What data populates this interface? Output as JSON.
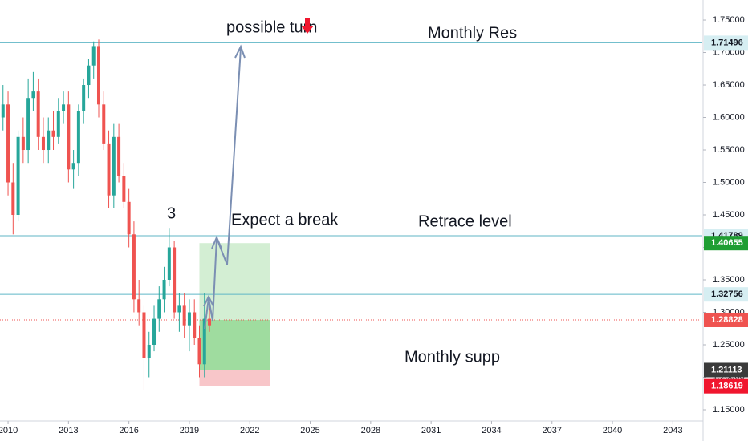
{
  "chart_data": {
    "type": "candlestick",
    "x": [
      2009.75,
      2010.0,
      2010.25,
      2010.5,
      2010.75,
      2011.0,
      2011.25,
      2011.5,
      2011.75,
      2012.0,
      2012.25,
      2012.5,
      2012.75,
      2013.0,
      2013.25,
      2013.5,
      2013.75,
      2014.0,
      2014.25,
      2014.5,
      2014.75,
      2015.0,
      2015.25,
      2015.5,
      2015.75,
      2016.0,
      2016.25,
      2016.5,
      2016.75,
      2017.0,
      2017.25,
      2017.5,
      2017.75,
      2018.0,
      2018.25,
      2018.5,
      2018.75,
      2019.0,
      2019.25,
      2019.5,
      2019.75,
      2020.0
    ],
    "open": [
      1.6,
      1.62,
      1.5,
      1.45,
      1.57,
      1.55,
      1.63,
      1.64,
      1.57,
      1.55,
      1.58,
      1.57,
      1.61,
      1.62,
      1.52,
      1.53,
      1.61,
      1.65,
      1.68,
      1.71,
      1.62,
      1.56,
      1.48,
      1.57,
      1.51,
      1.47,
      1.42,
      1.32,
      1.3,
      1.23,
      1.25,
      1.29,
      1.32,
      1.35,
      1.4,
      1.3,
      1.31,
      1.28,
      1.3,
      1.26,
      1.22,
      1.29
    ],
    "high": [
      1.65,
      1.64,
      1.53,
      1.58,
      1.6,
      1.66,
      1.67,
      1.66,
      1.6,
      1.6,
      1.61,
      1.63,
      1.64,
      1.64,
      1.55,
      1.62,
      1.66,
      1.69,
      1.717,
      1.72,
      1.64,
      1.58,
      1.59,
      1.59,
      1.53,
      1.49,
      1.44,
      1.35,
      1.31,
      1.27,
      1.31,
      1.34,
      1.37,
      1.43,
      1.41,
      1.33,
      1.33,
      1.32,
      1.32,
      1.28,
      1.33,
      1.31
    ],
    "low": [
      1.58,
      1.48,
      1.42,
      1.44,
      1.53,
      1.53,
      1.61,
      1.55,
      1.53,
      1.53,
      1.55,
      1.56,
      1.59,
      1.5,
      1.49,
      1.51,
      1.59,
      1.63,
      1.66,
      1.6,
      1.55,
      1.46,
      1.46,
      1.5,
      1.46,
      1.4,
      1.3,
      1.28,
      1.18,
      1.2,
      1.24,
      1.27,
      1.3,
      1.34,
      1.29,
      1.27,
      1.26,
      1.24,
      1.25,
      1.2,
      1.2,
      1.27
    ],
    "close": [
      1.62,
      1.5,
      1.45,
      1.57,
      1.55,
      1.63,
      1.64,
      1.57,
      1.55,
      1.58,
      1.57,
      1.61,
      1.62,
      1.52,
      1.53,
      1.61,
      1.65,
      1.68,
      1.71,
      1.62,
      1.56,
      1.48,
      1.57,
      1.51,
      1.47,
      1.42,
      1.32,
      1.3,
      1.23,
      1.25,
      1.29,
      1.32,
      1.35,
      1.4,
      1.3,
      1.31,
      1.28,
      1.3,
      1.26,
      1.22,
      1.29,
      1.28
    ],
    "up_color": "#26a69a",
    "down_color": "#ef5350",
    "xlim": [
      2009.6,
      2044.46
    ],
    "xticks": [
      2010,
      2013,
      2016,
      2019,
      2022,
      2025,
      2028,
      2031,
      2034,
      2037,
      2040,
      2043
    ],
    "ylim": [
      1.1327,
      1.7809
    ],
    "yticks": [
      {
        "value": 1.15,
        "label": "1.15000"
      },
      {
        "value": 1.2,
        "label": "1.20000"
      },
      {
        "value": 1.25,
        "label": "1.25000"
      },
      {
        "value": 1.3,
        "label": "1.30000"
      },
      {
        "value": 1.35,
        "label": "1.35000"
      },
      {
        "value": 1.4,
        "label": "1.40000"
      },
      {
        "value": 1.45,
        "label": "1.45000"
      },
      {
        "value": 1.5,
        "label": "1.50000"
      },
      {
        "value": 1.55,
        "label": "1.55000"
      },
      {
        "value": 1.6,
        "label": "1.60000"
      },
      {
        "value": 1.65,
        "label": "1.65000"
      },
      {
        "value": 1.7,
        "label": "1.70000"
      },
      {
        "value": 1.75,
        "label": "1.75000"
      }
    ],
    "grid": false,
    "levels": [
      1.71496,
      1.41789,
      1.32756,
      1.21116
    ],
    "level_color": "#5fb6c6",
    "last_price": 1.28828,
    "last_price_color": "#ef5350",
    "position": {
      "x": [
        2019.5,
        2023.0
      ],
      "entry": 1.21113,
      "target": 1.40655,
      "stop": 1.18619
    },
    "price_tags": [
      {
        "value": 1.40655,
        "color": "#1f9e33"
      },
      {
        "value": 1.21113,
        "color": "#3a3a3a"
      },
      {
        "value": 1.18619,
        "color": "#f0162e"
      }
    ],
    "annotations": [
      "possible turn",
      "Monthly Res",
      "3",
      "Expect a break",
      "Retrace level",
      "Monthly supp"
    ]
  }
}
